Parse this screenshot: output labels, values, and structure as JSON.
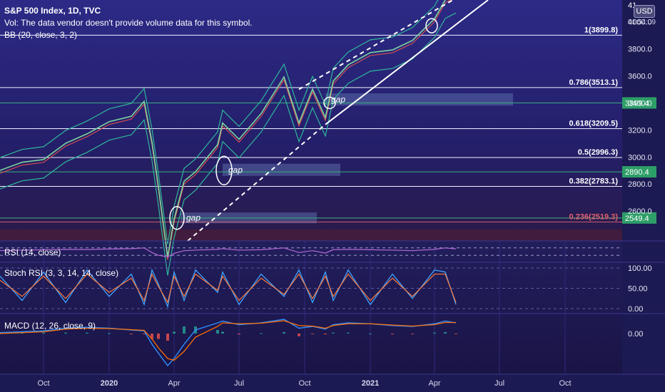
{
  "header": {
    "symbol_title": "S&P 500 Index, 1D, TVC",
    "vol_note": "Vol: The data vendor doesn't provide volume data for this symbol.",
    "bb_label": "BB (20, close, 3, 2)",
    "currency": "USD",
    "price_top_label": "41",
    "price_sub_label": "01:54:09"
  },
  "chart_data": {
    "type": "line",
    "title": "S&P 500 Index, 1D, TVC",
    "price_axis": {
      "ticks": [
        2600,
        2800,
        3000,
        3200,
        3400,
        3600,
        3800,
        4000
      ],
      "tick_labels": [
        "2600.0",
        "2800.0",
        "3000.0",
        "3200.0",
        "3400.0",
        "3600.0",
        "3800.0",
        "4000.0"
      ],
      "range": [
        2380,
        4160
      ]
    },
    "time_axis": {
      "labels": [
        "Oct",
        "2020",
        "Apr",
        "Jul",
        "Oct",
        "2021",
        "Apr",
        "Jul",
        "Oct"
      ],
      "bold": [
        false,
        true,
        false,
        false,
        false,
        true,
        false,
        false,
        false
      ]
    },
    "series": [
      {
        "name": "S&P 500 Index",
        "x": [
          "2019-08-01",
          "2019-09-01",
          "2019-10-01",
          "2019-11-01",
          "2019-12-01",
          "2020-01-01",
          "2020-02-01",
          "2020-02-19",
          "2020-03-01",
          "2020-03-10",
          "2020-03-23",
          "2020-04-01",
          "2020-04-15",
          "2020-05-01",
          "2020-06-01",
          "2020-06-08",
          "2020-07-01",
          "2020-08-01",
          "2020-09-02",
          "2020-09-23",
          "2020-10-12",
          "2020-10-30",
          "2020-11-10",
          "2020-12-01",
          "2021-01-01",
          "2021-02-01",
          "2021-03-01",
          "2021-04-01",
          "2021-04-16",
          "2021-05-01"
        ],
        "values": [
          2880,
          2940,
          2960,
          3080,
          3150,
          3240,
          3280,
          3390,
          3090,
          2760,
          2240,
          2520,
          2800,
          2870,
          3070,
          3230,
          3110,
          3300,
          3570,
          3230,
          3480,
          3270,
          3540,
          3660,
          3750,
          3770,
          3840,
          4000,
          4140,
          4180
        ]
      }
    ],
    "fib_levels": [
      {
        "label": "1(3899.8)",
        "value": 3899.8
      },
      {
        "label": "0.786(3513.1)",
        "value": 3513.1
      },
      {
        "label": "0.618(3209.5)",
        "value": 3209.5
      },
      {
        "label": "0.5(2996.3)",
        "value": 2996.3
      },
      {
        "label": "0.382(2783.1)",
        "value": 2783.1
      },
      {
        "label": "0.236(2519.3)",
        "value": 2519.3
      }
    ],
    "price_tags": [
      {
        "label": "3399.4",
        "value": 3399.4
      },
      {
        "label": "2890.4",
        "value": 2890.4
      },
      {
        "label": "2549.4",
        "value": 2549.4
      }
    ],
    "gaps": [
      {
        "label": "gap",
        "from": "2020-10-30",
        "to": "2021-07-20",
        "low": 3380,
        "high": 3470
      },
      {
        "label": "gap",
        "from": "2020-06-08",
        "to": "2020-11-20",
        "low": 2860,
        "high": 2950
      },
      {
        "label": "gap",
        "from": "2020-04-10",
        "to": "2020-10-18",
        "low": 2510,
        "high": 2590
      }
    ],
    "trendlines": [
      {
        "style": "solid",
        "from": {
          "x": "2020-10-30",
          "y": 3240
        },
        "to": {
          "x": "2021-06-15",
          "y": 4160
        }
      },
      {
        "style": "dashed",
        "from": {
          "x": "2020-04-20",
          "y": 2380
        },
        "to": {
          "x": "2020-10-30",
          "y": 3240
        }
      },
      {
        "style": "dashed",
        "from": {
          "x": "2020-09-23",
          "y": 3500
        },
        "to": {
          "x": "2021-04-30",
          "y": 4170
        }
      }
    ],
    "rsi": {
      "label": "RSI (14, close)",
      "values": [
        55,
        58,
        60,
        62,
        61,
        64,
        66,
        70,
        45,
        30,
        22,
        40,
        55,
        58,
        62,
        66,
        58,
        60,
        70,
        45,
        55,
        42,
        60,
        62,
        60,
        58,
        55,
        62,
        70,
        65
      ]
    },
    "stoch_rsi": {
      "label": "Stoch RSI (3, 3, 14, 14, close)",
      "ticks": [
        0,
        50,
        100
      ],
      "tick_labels": [
        "0.00",
        "50.00",
        "100.00"
      ],
      "k_values": [
        80,
        20,
        90,
        15,
        95,
        30,
        85,
        10,
        95,
        60,
        5,
        90,
        20,
        95,
        40,
        90,
        10,
        85,
        30,
        95,
        15,
        90,
        20,
        95,
        10,
        85,
        25,
        95,
        90,
        10
      ],
      "d_values": [
        70,
        30,
        80,
        25,
        85,
        40,
        75,
        20,
        85,
        55,
        15,
        80,
        30,
        85,
        45,
        80,
        20,
        75,
        35,
        85,
        25,
        80,
        30,
        85,
        20,
        75,
        30,
        85,
        85,
        15
      ]
    },
    "macd": {
      "label": "MACD (12, 26, close, 9)",
      "ticks": [
        0
      ],
      "tick_labels": [
        "0.00"
      ],
      "macd_values": [
        5,
        10,
        15,
        30,
        35,
        30,
        20,
        15,
        -60,
        -110,
        -180,
        -140,
        -60,
        20,
        60,
        70,
        50,
        60,
        80,
        30,
        40,
        25,
        50,
        60,
        55,
        45,
        40,
        55,
        70,
        60
      ],
      "signal_values": [
        0,
        5,
        10,
        25,
        30,
        28,
        22,
        18,
        -30,
        -80,
        -140,
        -150,
        -100,
        -20,
        40,
        60,
        55,
        58,
        72,
        45,
        42,
        30,
        45,
        55,
        55,
        48,
        42,
        50,
        62,
        62
      ],
      "histogram": [
        5,
        5,
        5,
        5,
        5,
        2,
        -2,
        -3,
        -30,
        -30,
        -40,
        10,
        40,
        40,
        20,
        10,
        -5,
        2,
        8,
        -15,
        -2,
        -5,
        5,
        5,
        0,
        -3,
        -2,
        5,
        8,
        -2
      ]
    }
  }
}
